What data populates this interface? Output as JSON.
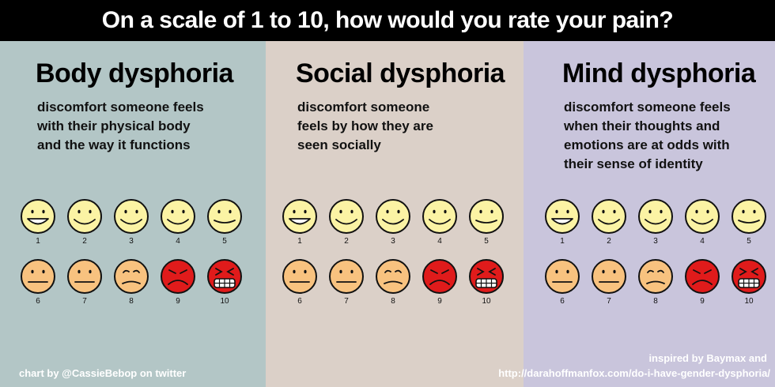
{
  "header": {
    "title": "On a scale of 1 to 10, how would you rate your pain?"
  },
  "panels": [
    {
      "title": "Body dysphoria",
      "description": "discomfort someone feels\nwith their physical body\nand the way it functions",
      "color": "#b3c6c6"
    },
    {
      "title": "Social dysphoria",
      "description": "discomfort someone\nfeels by how they are\nseen socially",
      "color": "#dbd0c8"
    },
    {
      "title": "Mind dysphoria",
      "description": "discomfort someone feels\nwhen their thoughts and\nemotions are at odds with\ntheir sense of identity",
      "color": "#c9c5dc"
    }
  ],
  "scale": {
    "numbers": [
      "1",
      "2",
      "3",
      "4",
      "5",
      "6",
      "7",
      "8",
      "9",
      "10"
    ],
    "face_colors": [
      "#fbf3a4",
      "#fbf3a4",
      "#fbf3a4",
      "#fbf3a4",
      "#fbf3a4",
      "#f8c27f",
      "#f8c27f",
      "#f8c27f",
      "#e01b1b",
      "#e01b1b"
    ],
    "expressions": [
      "big-smile-face",
      "smile-face",
      "smile-face",
      "smile-face",
      "slight-smile-face",
      "neutral-face",
      "neutral-face",
      "sad-face",
      "grimace-face",
      "pain-face"
    ]
  },
  "credits": {
    "left": "chart by @CassieBebop on twitter",
    "right_line1": "inspired by Baymax and",
    "right_line2": "http://darahoffmanfox.com/do-i-have-gender-dysphoria/"
  }
}
